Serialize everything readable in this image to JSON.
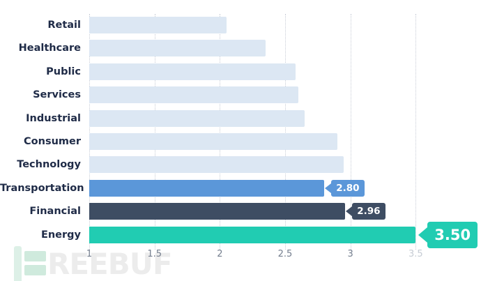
{
  "chart_data": {
    "type": "bar",
    "orientation": "horizontal",
    "title": "",
    "xlabel": "",
    "ylabel": "",
    "categories": [
      "Retail",
      "Healthcare",
      "Public",
      "Services",
      "Industrial",
      "Consumer",
      "Technology",
      "Transportation",
      "Financial",
      "Energy"
    ],
    "values": [
      2.05,
      2.35,
      2.58,
      2.6,
      2.65,
      2.9,
      2.95,
      2.8,
      2.96,
      3.5
    ],
    "data_labels": [
      "",
      "",
      "",
      "",
      "",
      "",
      "",
      "2.80",
      "2.96",
      "3.50"
    ],
    "data_label_sizes": [
      "",
      "",
      "",
      "",
      "",
      "",
      "",
      "small",
      "small",
      "large"
    ],
    "bar_colors": [
      "#dce7f3",
      "#dce7f3",
      "#dce7f3",
      "#dce7f3",
      "#dce7f3",
      "#dce7f3",
      "#dce7f3",
      "#5b97d9",
      "#3e4d63",
      "#21ccb2"
    ],
    "x_ticks": [
      {
        "label": "1",
        "value": 1,
        "faded": false
      },
      {
        "label": "1.5",
        "value": 1.5,
        "faded": false
      },
      {
        "label": "2",
        "value": 2,
        "faded": false
      },
      {
        "label": "2.5",
        "value": 2.5,
        "faded": false
      },
      {
        "label": "3",
        "value": 3,
        "faded": false
      },
      {
        "label": "3.5",
        "value": 3.5,
        "faded": true
      }
    ],
    "xlim": [
      1,
      4
    ],
    "grid": "vertical-dotted",
    "legend": "none"
  },
  "colors": {
    "background": "#ffffff",
    "bar_default": "#dce7f3",
    "bar_transportation": "#5b97d9",
    "bar_financial": "#3e4d63",
    "bar_energy": "#21ccb2",
    "category_label_text": "#1f2b47",
    "tick_text": "#747e8e",
    "tick_text_faded": "#c6ccd4",
    "gridline": "#c7ccd6",
    "tag_text": "#ffffff",
    "watermark_text": "#ececec",
    "watermark_icon_bar": "#ddf0e7",
    "watermark_icon_block": "#cfeadd"
  },
  "watermark": {
    "text": "REEBUF",
    "icon": "freebuf-logo"
  }
}
